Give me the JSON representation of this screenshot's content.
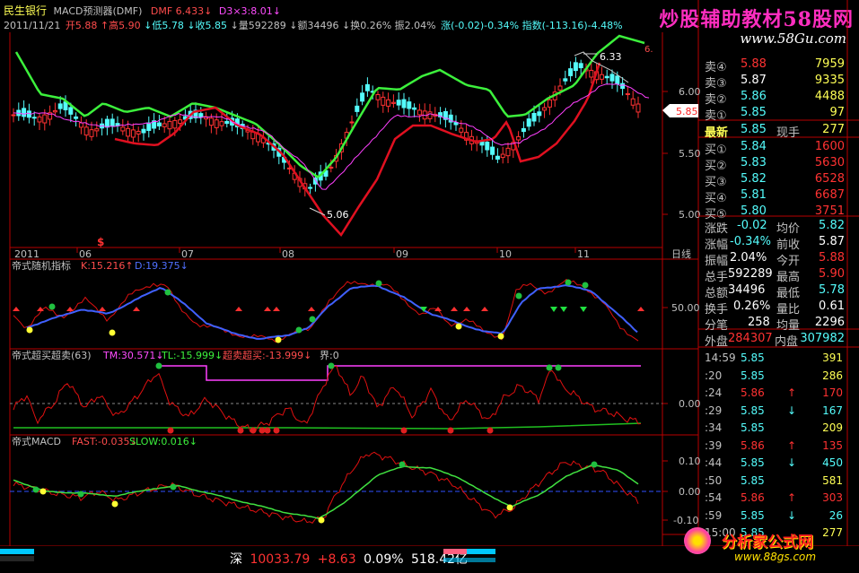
{
  "header": {
    "stock_name": "民生银行",
    "indicator": "MACD预测器(DMF)",
    "dmf_value": "DMF 6.433↓",
    "d3_value": "D3×3:8.01↓",
    "date": "2011/11/21",
    "open": "开5.88",
    "high": "↑高5.90",
    "low": "↓低5.78",
    "close": "↓收5.85",
    "volume": "↓量592289",
    "amount": "↓额34496",
    "turnover": "↓换0.26%",
    "amplitude": "振2.04%",
    "change": "涨(-0.02)-0.34%",
    "index": "指数(-113.16)-4.48%"
  },
  "watermark": {
    "title": "炒股辅助教材58股网",
    "url": "www.58Gu.com"
  },
  "main_chart": {
    "y_ticks": [
      "6.00",
      "5.50",
      "5.00"
    ],
    "x_ticks": [
      "2011",
      "06",
      "07",
      "08",
      "09",
      "10",
      "11"
    ],
    "period": "日线",
    "price_tag": "5.85",
    "hi_label": "6.33",
    "lo_label": "5.06",
    "top_right_label": "6."
  },
  "panel_kd": {
    "title": "帝式随机指标",
    "k": "K:15.216↑",
    "d": "D:19.375↓",
    "tick": "50.00"
  },
  "panel_ob": {
    "title": "帝式超买超卖(63)",
    "tm": "TM:30.571↓",
    "tl": "TL:-15.999↓",
    "cm": "超卖超买:-13.999↓",
    "jie": "界:0",
    "tick": "0.00"
  },
  "panel_macd": {
    "title": "帝式MACD",
    "fast": "FAST:-0.035↓",
    "slow": "SLOW:0.016↓",
    "ticks": [
      "0.10",
      "0.00",
      "-0.10"
    ]
  },
  "quote": {
    "asks": [
      {
        "label": "卖④",
        "price": "5.88",
        "vol": "7959"
      },
      {
        "label": "卖③",
        "price": "5.87",
        "vol": "9335"
      },
      {
        "label": "卖②",
        "price": "5.86",
        "vol": "4488"
      },
      {
        "label": "卖①",
        "price": "5.85",
        "vol": "97"
      }
    ],
    "latest": {
      "label": "最新",
      "price": "5.85",
      "label2": "现手",
      "value": "277"
    },
    "bids": [
      {
        "label": "买①",
        "price": "5.84",
        "vol": "1600"
      },
      {
        "label": "买②",
        "price": "5.83",
        "vol": "5630"
      },
      {
        "label": "买③",
        "price": "5.82",
        "vol": "6528"
      },
      {
        "label": "买④",
        "price": "5.81",
        "vol": "6687"
      },
      {
        "label": "买⑤",
        "price": "5.80",
        "vol": "3751"
      }
    ],
    "stats": [
      {
        "l1": "涨跌",
        "v1": "-0.02",
        "l2": "均价",
        "v2": "5.82"
      },
      {
        "l1": "涨幅",
        "v1": "-0.34%",
        "l2": "前收",
        "v2": "5.87"
      },
      {
        "l1": "振幅",
        "v1": "2.04%",
        "l2": "今开",
        "v2": "5.88"
      },
      {
        "l1": "总手",
        "v1": "592289",
        "l2": "最高",
        "v2": "5.90"
      },
      {
        "l1": "总额",
        "v1": "34496",
        "l2": "最低",
        "v2": "5.78"
      },
      {
        "l1": "换手",
        "v1": "0.26%",
        "l2": "量比",
        "v2": "0.61"
      },
      {
        "l1": "分笔",
        "v1": "258",
        "l2": "均量",
        "v2": "2296"
      }
    ],
    "outer": {
      "label": "外盘",
      "value": "284307",
      "label2": "内盘",
      "value2": "307982"
    }
  },
  "ticks": [
    {
      "time": "14:59",
      "price": "5.85",
      "arrow": "",
      "vol": "391"
    },
    {
      "time": ":20",
      "price": "5.85",
      "arrow": "",
      "vol": "286"
    },
    {
      "time": ":24",
      "price": "5.86",
      "arrow": "↑",
      "vol": "170"
    },
    {
      "time": ":29",
      "price": "5.85",
      "arrow": "↓",
      "vol": "167"
    },
    {
      "time": ":34",
      "price": "5.85",
      "arrow": "",
      "vol": "209"
    },
    {
      "time": ":39",
      "price": "5.86",
      "arrow": "↑",
      "vol": "135"
    },
    {
      "time": ":44",
      "price": "5.85",
      "arrow": "↓",
      "vol": "450"
    },
    {
      "time": ":50",
      "price": "5.85",
      "arrow": "",
      "vol": "581"
    },
    {
      "time": ":54",
      "price": "5.86",
      "arrow": "↑",
      "vol": "303"
    },
    {
      "time": ":59",
      "price": "5.85",
      "arrow": "↓",
      "vol": "26"
    },
    {
      "time": "15:00",
      "price": "5.85",
      "arrow": "",
      "vol": "277"
    }
  ],
  "bottom": {
    "market": "深",
    "index": "10033.79",
    "change": "+8.63",
    "pct": "0.09%",
    "amount": "518.42亿",
    "logo": "分析家公式网",
    "logo_url": "www.88gs.com"
  },
  "colors": {
    "up": "#ff3232",
    "down": "#54fcfc",
    "green": "#3cf03c",
    "magenta": "#ff4cff",
    "yellow": "#ffff33",
    "frame": "#b80000"
  }
}
